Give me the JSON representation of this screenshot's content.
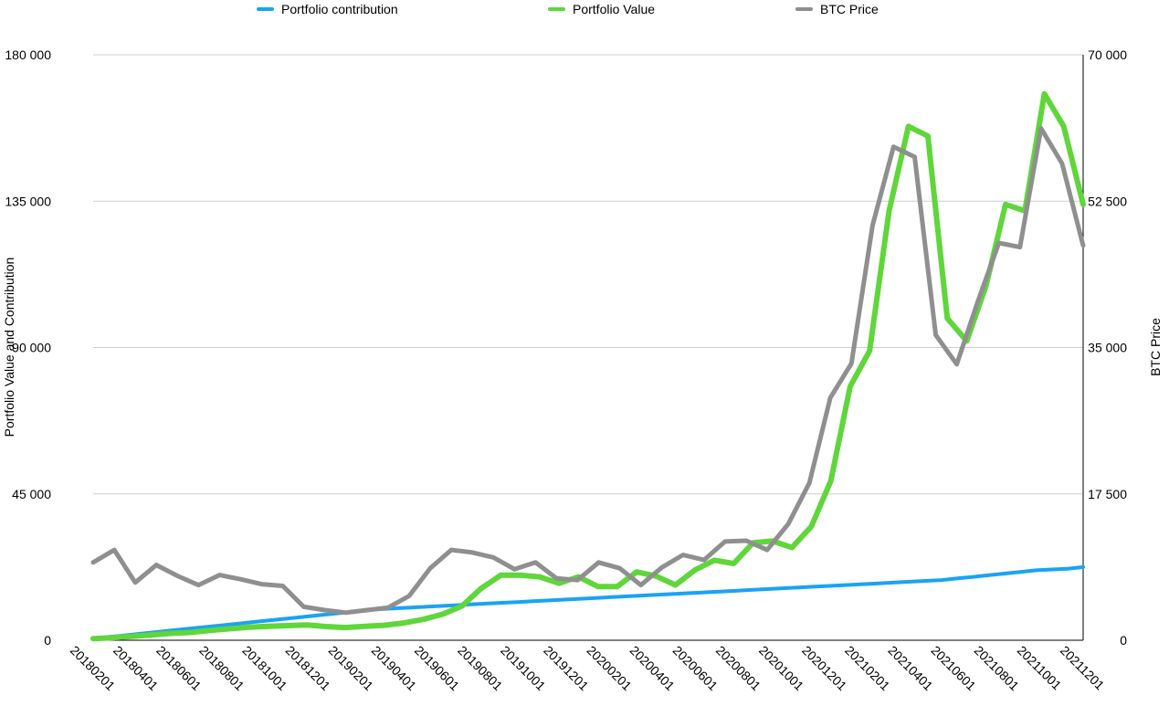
{
  "chart_data": {
    "type": "line",
    "title": "",
    "legend_placement": "top",
    "grid": true,
    "colors": {
      "contribution": "#1aa3f5",
      "value": "#5fd63a",
      "btc": "#8f8f8f",
      "grid": "#cfcfcf",
      "axis": "#000000"
    },
    "ylabel_left": "Portfolio Value and Contribution",
    "ylabel_right": "BTC Price",
    "ylim_left": [
      0,
      180000
    ],
    "ylim_right": [
      0,
      70000
    ],
    "yticks_left": [
      "0",
      "45 000",
      "90 000",
      "135 000",
      "180 000"
    ],
    "yticks_right": [
      "0",
      "17 500",
      "35 000",
      "52 500",
      "70 000"
    ],
    "xtick_labels": [
      "20180201",
      "20180401",
      "20180601",
      "20180801",
      "20181001",
      "20181201",
      "20190201",
      "20190401",
      "20190601",
      "20190801",
      "20191001",
      "20191201",
      "20200201",
      "20200401",
      "20200601",
      "20200801",
      "20201001",
      "20201201",
      "20210201",
      "20210401",
      "20210601",
      "20210801",
      "20211001",
      "20211201"
    ],
    "series": [
      {
        "key": "contribution",
        "name": "Portfolio contribution",
        "axis": "left",
        "values": [
          500,
          1000,
          1500,
          2000,
          2500,
          3000,
          3500,
          4000,
          4500,
          5000,
          5500,
          6000,
          6500,
          7000,
          7500,
          8000,
          8500,
          9000,
          9500,
          9750,
          10000,
          10250,
          10500,
          10750,
          11000,
          11250,
          11500,
          11750,
          12000,
          12250,
          12500,
          12750,
          13000,
          13250,
          13500,
          13750,
          14000,
          14250,
          14500,
          14750,
          15000,
          15250,
          15500,
          15750,
          16000,
          16250,
          16500,
          16750,
          17000,
          17250,
          17500,
          17750,
          18000,
          18250,
          18500,
          19000,
          19500,
          20000,
          20500,
          21000,
          21500,
          21750,
          22000,
          22500
        ]
      },
      {
        "key": "value",
        "name": "Portfolio Value",
        "axis": "left",
        "values": [
          500,
          800,
          1200,
          1600,
          2100,
          2400,
          3000,
          3500,
          4000,
          4300,
          4500,
          4700,
          4200,
          3900,
          4300,
          4600,
          5300,
          6400,
          8000,
          10500,
          16000,
          20000,
          20000,
          19500,
          17500,
          19500,
          16500,
          16500,
          21000,
          19700,
          17000,
          21600,
          24600,
          23600,
          30000,
          30500,
          28500,
          35000,
          49000,
          78000,
          89000,
          132000,
          158000,
          155000,
          99000,
          92000,
          109000,
          134000,
          132000,
          168000,
          158000,
          134000
        ]
      },
      {
        "key": "btc",
        "name": "BTC Price",
        "axis": "right",
        "values": [
          9300,
          10800,
          6900,
          9000,
          7700,
          6600,
          7800,
          7300,
          6700,
          6500,
          4000,
          3600,
          3300,
          3600,
          3900,
          5300,
          8600,
          10800,
          10500,
          9900,
          8500,
          9300,
          7400,
          7200,
          9300,
          8600,
          6600,
          8700,
          10200,
          9600,
          11800,
          11900,
          10800,
          13900,
          18800,
          29000,
          33100,
          49600,
          59000,
          57800,
          36500,
          33000,
          40500,
          47500,
          47000,
          61200,
          57000,
          47200
        ]
      }
    ]
  }
}
